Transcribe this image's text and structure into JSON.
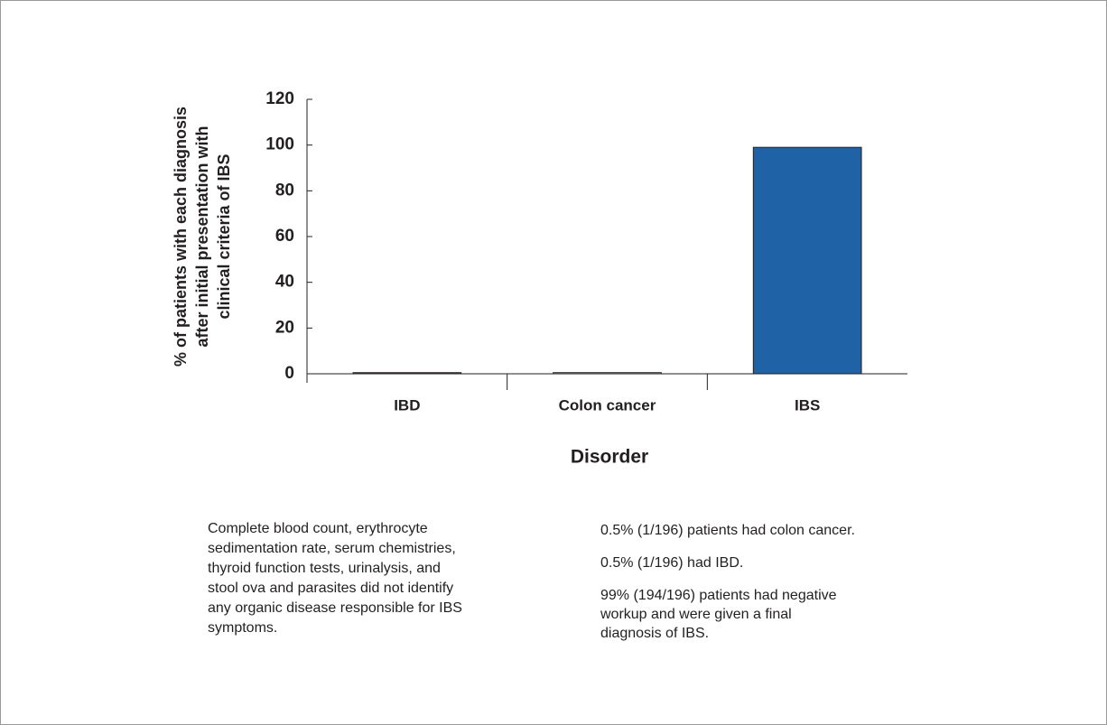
{
  "chart_data": {
    "type": "bar",
    "x_label": "Disorder",
    "y_label": [
      "% of patients with each diagnosis",
      "after initial presentation with",
      "clinical criteria of IBS"
    ],
    "categories": [
      "IBD",
      "Colon cancer",
      "IBS"
    ],
    "values": [
      0.5,
      0.5,
      99
    ],
    "colors": [
      "#c1272d",
      "#f3ea2b",
      "#1f63a6"
    ],
    "ylim": [
      0,
      120
    ],
    "yticks": [
      0,
      20,
      40,
      60,
      80,
      100,
      120
    ],
    "grid": false
  },
  "notes": {
    "left": [
      "Complete blood count, erythrocyte",
      "sedimentation rate, serum chemistries,",
      "thyroid function tests, urinalysis, and",
      "stool ova and parasites did not identify",
      "any organic disease responsible for IBS",
      "symptoms."
    ],
    "right": [
      [
        "0.5% (1/196) patients had colon cancer."
      ],
      [
        "0.5% (1/196) had IBD."
      ],
      [
        "99% (194/196) patients had negative",
        "workup and were given a final",
        "diagnosis of IBS."
      ]
    ]
  }
}
